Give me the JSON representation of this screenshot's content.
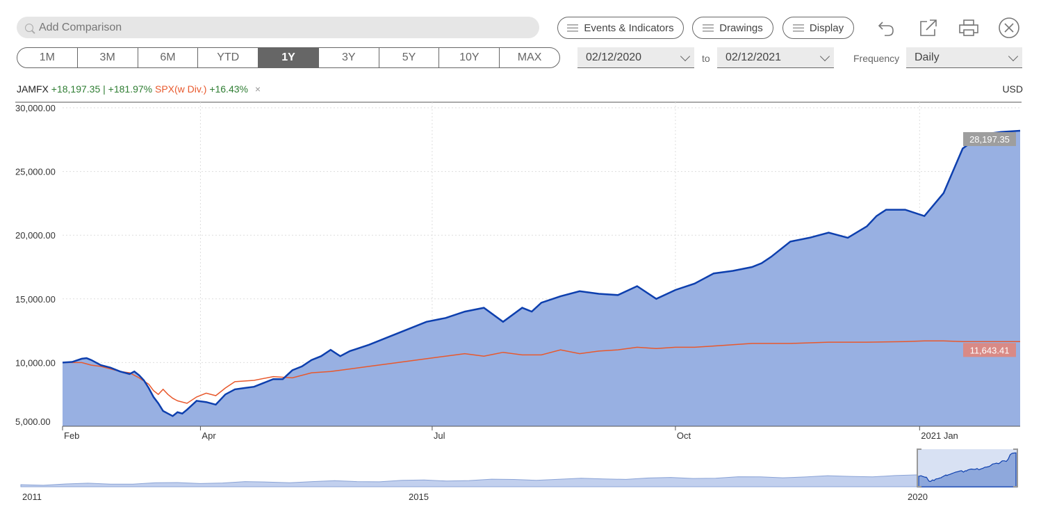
{
  "toolbar": {
    "search_placeholder": "Add Comparison",
    "events_label": "Events & Indicators",
    "drawings_label": "Drawings",
    "display_label": "Display"
  },
  "ranges": [
    "1M",
    "3M",
    "6M",
    "YTD",
    "1Y",
    "3Y",
    "5Y",
    "10Y",
    "MAX"
  ],
  "active_range": "1Y",
  "dates": {
    "from": "02/12/2020",
    "to_label": "to",
    "to": "02/12/2021"
  },
  "frequency": {
    "label": "Frequency",
    "value": "Daily"
  },
  "legend": {
    "fund": "JAMFX",
    "fund_change": "+18,197.35 | +181.97%",
    "bench": "SPX(w Div.)",
    "bench_change": "+16.43%",
    "remove": "×"
  },
  "currency": "USD",
  "colors": {
    "fund": "#0d3fae",
    "fund_fill": "#98b0e2",
    "bench": "#e8582c",
    "active_range": "#666666"
  },
  "chart_data": {
    "type": "area",
    "x_labels": [
      "Feb",
      "Apr",
      "Jul",
      "Oct",
      "2021 Jan"
    ],
    "y_ticks": [
      5000,
      10000,
      15000,
      20000,
      25000,
      30000
    ],
    "y_tick_labels": [
      "5,000.00",
      "10,000.00",
      "15,000.00",
      "20,000.00",
      "25,000.00",
      "30,000.00"
    ],
    "ylim": [
      5000,
      30000
    ],
    "xlim": [
      0,
      1
    ],
    "grid": true,
    "series": [
      {
        "name": "JAMFX",
        "last_label": "28,197.35",
        "x": [
          0,
          0.01,
          0.02,
          0.025,
          0.03,
          0.04,
          0.05,
          0.06,
          0.07,
          0.075,
          0.08,
          0.085,
          0.09,
          0.095,
          0.1,
          0.105,
          0.11,
          0.115,
          0.12,
          0.125,
          0.13,
          0.14,
          0.15,
          0.16,
          0.17,
          0.18,
          0.19,
          0.2,
          0.21,
          0.22,
          0.23,
          0.24,
          0.25,
          0.26,
          0.27,
          0.28,
          0.29,
          0.3,
          0.32,
          0.34,
          0.36,
          0.38,
          0.4,
          0.42,
          0.44,
          0.46,
          0.48,
          0.49,
          0.5,
          0.52,
          0.54,
          0.56,
          0.58,
          0.6,
          0.62,
          0.64,
          0.66,
          0.68,
          0.7,
          0.72,
          0.73,
          0.74,
          0.76,
          0.78,
          0.8,
          0.82,
          0.84,
          0.85,
          0.86,
          0.88,
          0.9,
          0.92,
          0.94,
          0.96,
          0.98,
          1.0
        ],
        "values": [
          10000,
          10050,
          10300,
          10350,
          10200,
          9800,
          9600,
          9300,
          9100,
          9300,
          9000,
          8600,
          8000,
          7300,
          6800,
          6200,
          6000,
          5800,
          6100,
          6000,
          6300,
          7000,
          6900,
          6700,
          7500,
          7900,
          8000,
          8100,
          8400,
          8700,
          8700,
          9400,
          9700,
          10200,
          10500,
          11000,
          10500,
          10900,
          11400,
          12000,
          12600,
          13200,
          13500,
          14000,
          14300,
          13200,
          14300,
          14000,
          14700,
          15200,
          15600,
          15400,
          15300,
          16000,
          15000,
          15700,
          16200,
          17000,
          17200,
          17500,
          17800,
          18300,
          19500,
          19800,
          20200,
          19800,
          20700,
          21500,
          22000,
          22000,
          21500,
          23300,
          26800,
          27900,
          28100,
          28197
        ]
      },
      {
        "name": "SPX(w Div.)",
        "last_label": "11,643.41",
        "x": [
          0,
          0.02,
          0.03,
          0.04,
          0.06,
          0.07,
          0.08,
          0.09,
          0.095,
          0.1,
          0.105,
          0.11,
          0.115,
          0.12,
          0.13,
          0.14,
          0.15,
          0.16,
          0.17,
          0.18,
          0.2,
          0.22,
          0.24,
          0.26,
          0.28,
          0.3,
          0.32,
          0.34,
          0.38,
          0.4,
          0.42,
          0.44,
          0.46,
          0.48,
          0.5,
          0.52,
          0.54,
          0.56,
          0.58,
          0.6,
          0.62,
          0.64,
          0.66,
          0.68,
          0.72,
          0.76,
          0.8,
          0.84,
          0.88,
          0.9,
          0.92,
          0.94,
          0.96,
          0.98,
          1.0
        ],
        "values": [
          10000,
          10000,
          9800,
          9700,
          9300,
          9200,
          8800,
          8300,
          7800,
          7500,
          7900,
          7500,
          7200,
          7000,
          6800,
          7300,
          7600,
          7400,
          8000,
          8500,
          8600,
          8900,
          8800,
          9200,
          9300,
          9500,
          9700,
          9900,
          10300,
          10500,
          10700,
          10500,
          10800,
          10600,
          10600,
          11000,
          10700,
          10900,
          11000,
          11200,
          11100,
          11200,
          11200,
          11300,
          11500,
          11500,
          11600,
          11600,
          11650,
          11700,
          11700,
          11650,
          11650,
          11643,
          11643
        ]
      }
    ]
  },
  "navigator": {
    "labels": [
      "2011",
      "2015",
      "2020"
    ]
  }
}
